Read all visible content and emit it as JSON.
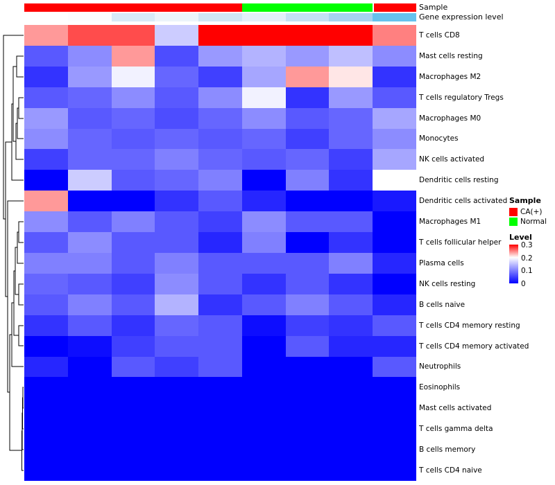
{
  "figure": {
    "annotations": {
      "sample_label": "Sample",
      "gene_label": "Gene expression level"
    }
  },
  "legend": {
    "sample": {
      "title": "Sample",
      "entries": [
        {
          "label": "CA(+)",
          "color": "#FF0000"
        },
        {
          "label": "Normal",
          "color": "#00FF00"
        }
      ]
    },
    "level": {
      "title": "Level",
      "ticks": [
        "0.3",
        "0.2",
        "0.1",
        "0"
      ],
      "gradient": [
        "#FF0000",
        "#FFFFFF",
        "#0000FF"
      ]
    }
  },
  "chart_data": {
    "type": "heatmap",
    "n_columns": 9,
    "rows": [
      "T cells CD8",
      "Mast cells resting",
      "Macrophages M2",
      "T cells regulatory Tregs",
      "Macrophages M0",
      "Monocytes",
      "NK cells activated",
      "Dendritic cells resting",
      "Dendritic cells activated",
      "Macrophages M1",
      "T cells follicular helper",
      "Plasma cells",
      "NK cells resting",
      "B cells naive",
      "T cells CD4 memory resting",
      "T cells CD4 memory activated",
      "Neutrophils",
      "Eosinophils",
      "Mast cells activated",
      "T cells gamma delta",
      "B cells memory",
      "T cells CD4 naive"
    ],
    "values": [
      [
        0.24,
        0.27,
        0.27,
        0.16,
        0.3,
        0.32,
        0.31,
        0.3,
        0.25
      ],
      [
        0.07,
        0.11,
        0.24,
        0.06,
        0.12,
        0.14,
        0.12,
        0.15,
        0.11
      ],
      [
        0.04,
        0.12,
        0.19,
        0.08,
        0.05,
        0.13,
        0.24,
        0.21,
        0.04
      ],
      [
        0.07,
        0.08,
        0.11,
        0.07,
        0.11,
        0.19,
        0.04,
        0.12,
        0.07
      ],
      [
        0.12,
        0.07,
        0.08,
        0.06,
        0.08,
        0.11,
        0.07,
        0.08,
        0.13
      ],
      [
        0.11,
        0.08,
        0.07,
        0.08,
        0.07,
        0.08,
        0.05,
        0.08,
        0.11
      ],
      [
        0.05,
        0.08,
        0.08,
        0.1,
        0.08,
        0.07,
        0.08,
        0.05,
        0.13
      ],
      [
        0.0,
        0.16,
        0.07,
        0.08,
        0.1,
        0.0,
        0.1,
        0.04,
        0.2
      ],
      [
        0.24,
        0.0,
        0.0,
        0.04,
        0.07,
        0.03,
        0.0,
        0.0,
        0.02
      ],
      [
        0.11,
        0.07,
        0.1,
        0.07,
        0.05,
        0.11,
        0.07,
        0.07,
        0.0
      ],
      [
        0.07,
        0.11,
        0.07,
        0.07,
        0.03,
        0.1,
        0.0,
        0.04,
        0.0
      ],
      [
        0.1,
        0.1,
        0.07,
        0.1,
        0.07,
        0.07,
        0.07,
        0.1,
        0.03
      ],
      [
        0.08,
        0.07,
        0.05,
        0.11,
        0.07,
        0.04,
        0.07,
        0.04,
        0.0
      ],
      [
        0.07,
        0.1,
        0.07,
        0.14,
        0.04,
        0.07,
        0.1,
        0.07,
        0.03
      ],
      [
        0.04,
        0.07,
        0.04,
        0.08,
        0.07,
        0.01,
        0.05,
        0.04,
        0.07
      ],
      [
        0.0,
        0.01,
        0.05,
        0.07,
        0.07,
        0.0,
        0.07,
        0.03,
        0.03
      ],
      [
        0.03,
        0.0,
        0.07,
        0.05,
        0.07,
        0.0,
        0.0,
        0.0,
        0.07
      ],
      [
        0.0,
        0.0,
        0.0,
        0.0,
        0.0,
        0.0,
        0.0,
        0.0,
        0.0
      ],
      [
        0.0,
        0.0,
        0.0,
        0.0,
        0.0,
        0.0,
        0.0,
        0.0,
        0.0
      ],
      [
        0.0,
        0.0,
        0.0,
        0.0,
        0.0,
        0.0,
        0.0,
        0.0,
        0.0
      ],
      [
        0.0,
        0.0,
        0.0,
        0.0,
        0.0,
        0.0,
        0.0,
        0.0,
        0.0
      ],
      [
        0.0,
        0.0,
        0.0,
        0.0,
        0.0,
        0.0,
        0.0,
        0.0,
        0.0
      ]
    ],
    "color_scale": {
      "low": "#0000FF",
      "mid": "#FFFFFF",
      "high": "#FF0000",
      "domain": [
        0,
        0.2,
        0.3
      ]
    },
    "column_annotations": {
      "sample": {
        "label": "Sample",
        "groups": [
          "CA(+)",
          "CA(+)",
          "CA(+)",
          "CA(+)",
          "CA(+)",
          "Normal",
          "Normal",
          "Normal",
          "CA(+)"
        ],
        "colors": {
          "CA(+)": "#FF0000",
          "Normal": "#00FF00"
        }
      },
      "gene_expression_level": {
        "label": "Gene expression level",
        "colors": [
          "#FFFFFF",
          "#FCFDFE",
          "#D8EAF7",
          "#ECF4FA",
          "#D0E6F5",
          "#E3F0F9",
          "#C4E1F4",
          "#A6D3EF",
          "#66C2EE"
        ]
      }
    },
    "row_dendrogram": true
  }
}
